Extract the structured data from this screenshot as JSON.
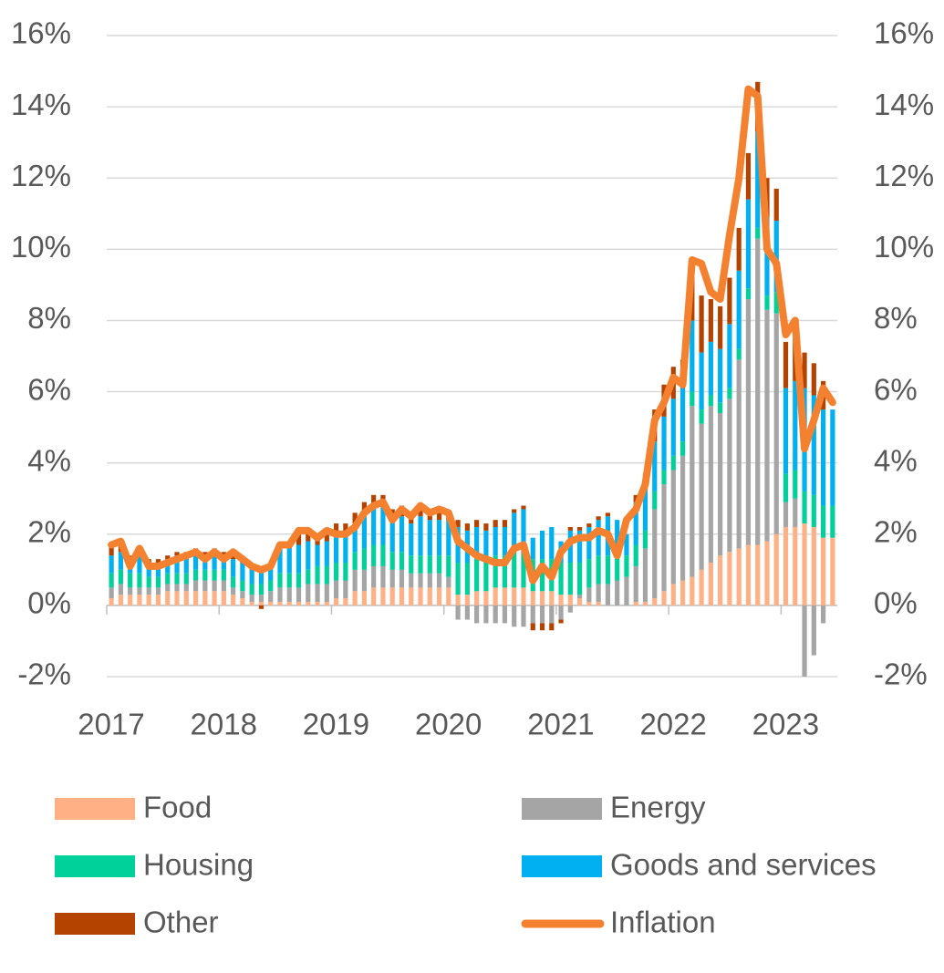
{
  "chart_data": {
    "type": "stacked-bar-line",
    "categories": [
      "2017",
      null,
      null,
      null,
      null,
      null,
      null,
      null,
      null,
      null,
      null,
      null,
      "2018",
      null,
      null,
      null,
      null,
      null,
      null,
      null,
      null,
      null,
      null,
      null,
      "2019",
      null,
      null,
      null,
      null,
      null,
      null,
      null,
      null,
      null,
      null,
      null,
      "2020",
      null,
      null,
      null,
      null,
      null,
      null,
      null,
      null,
      null,
      null,
      null,
      "2021",
      null,
      null,
      null,
      null,
      null,
      null,
      null,
      null,
      null,
      null,
      null,
      "2022",
      null,
      null,
      null,
      null,
      null,
      null,
      null,
      null,
      null,
      null,
      null,
      "2023",
      null,
      null,
      null,
      null,
      null
    ],
    "series": [
      {
        "name": "Food",
        "color": "#ffb085",
        "values": [
          0.2,
          0.3,
          0.3,
          0.3,
          0.3,
          0.3,
          0.4,
          0.4,
          0.4,
          0.4,
          0.4,
          0.4,
          0.4,
          0.3,
          0.2,
          0.1,
          0.1,
          0.1,
          0.1,
          0.1,
          0.1,
          0.1,
          0.1,
          0.1,
          0.2,
          0.2,
          0.4,
          0.4,
          0.5,
          0.5,
          0.5,
          0.5,
          0.5,
          0.5,
          0.5,
          0.5,
          0.5,
          0.3,
          0.3,
          0.4,
          0.4,
          0.5,
          0.5,
          0.5,
          0.5,
          0.4,
          0.4,
          0.4,
          0.3,
          0.3,
          0.2,
          0.1,
          0.1,
          0.0,
          0.0,
          0.0,
          0.1,
          0.1,
          0.2,
          0.4,
          0.6,
          0.7,
          0.8,
          1.0,
          1.2,
          1.4,
          1.5,
          1.6,
          1.7,
          1.7,
          1.8,
          2.0,
          2.2,
          2.2,
          2.3,
          2.2,
          1.9,
          1.9
        ]
      },
      {
        "name": "Energy",
        "color": "#a5a5a5",
        "values": [
          0.3,
          0.3,
          0.2,
          0.2,
          0.2,
          0.2,
          0.2,
          0.2,
          0.2,
          0.3,
          0.3,
          0.3,
          0.3,
          0.2,
          0.2,
          0.2,
          0.2,
          0.3,
          0.4,
          0.4,
          0.4,
          0.5,
          0.5,
          0.5,
          0.5,
          0.5,
          0.6,
          0.6,
          0.6,
          0.6,
          0.5,
          0.5,
          0.4,
          0.4,
          0.4,
          0.4,
          0.3,
          -0.4,
          -0.4,
          -0.5,
          -0.5,
          -0.5,
          -0.5,
          -0.6,
          -0.6,
          -0.5,
          -0.5,
          -0.5,
          -0.4,
          -0.2,
          0.1,
          0.4,
          0.5,
          0.6,
          0.7,
          0.8,
          1.0,
          1.5,
          2.5,
          3.0,
          3.2,
          3.5,
          4.8,
          4.1,
          4.4,
          4.0,
          4.3,
          5.3,
          6.9,
          8.6,
          6.5,
          6.2,
          0.7,
          0.8,
          -2.0,
          -1.4,
          -0.5,
          0.0
        ]
      },
      {
        "name": "Housing",
        "color": "#00d09a",
        "values": [
          0.4,
          0.4,
          0.4,
          0.4,
          0.3,
          0.3,
          0.3,
          0.3,
          0.3,
          0.3,
          0.3,
          0.3,
          0.3,
          0.3,
          0.3,
          0.3,
          0.3,
          0.3,
          0.4,
          0.4,
          0.4,
          0.4,
          0.5,
          0.5,
          0.5,
          0.5,
          0.5,
          0.6,
          0.6,
          0.6,
          0.5,
          0.5,
          0.5,
          0.5,
          0.5,
          0.5,
          0.6,
          0.9,
          0.9,
          0.9,
          0.9,
          0.9,
          0.9,
          1.0,
          1.0,
          0.9,
          0.9,
          0.9,
          0.9,
          0.9,
          0.9,
          0.8,
          0.8,
          0.8,
          0.7,
          0.6,
          0.6,
          0.5,
          0.5,
          0.4,
          0.4,
          0.4,
          0.4,
          0.4,
          0.3,
          0.3,
          0.3,
          0.3,
          0.3,
          0.3,
          0.4,
          0.6,
          0.8,
          0.8,
          0.9,
          0.9,
          0.9,
          0.9
        ]
      },
      {
        "name": "Goods and services",
        "color": "#00b0f0",
        "values": [
          0.5,
          0.5,
          0.4,
          0.5,
          0.4,
          0.4,
          0.4,
          0.5,
          0.5,
          0.5,
          0.4,
          0.5,
          0.4,
          0.5,
          0.5,
          0.4,
          0.4,
          0.4,
          0.7,
          0.7,
          0.8,
          0.8,
          0.6,
          0.7,
          0.8,
          0.8,
          0.8,
          1.0,
          1.1,
          1.1,
          0.9,
          1.0,
          0.9,
          1.1,
          1.0,
          1.0,
          1.0,
          1.0,
          0.9,
          0.9,
          0.8,
          0.8,
          0.8,
          1.1,
          1.2,
          0.6,
          0.8,
          0.9,
          0.6,
          0.9,
          0.9,
          0.9,
          1.0,
          1.1,
          1.0,
          0.6,
          1.2,
          1.3,
          1.4,
          1.5,
          1.6,
          1.5,
          2.0,
          1.6,
          1.5,
          1.5,
          1.8,
          2.2,
          2.5,
          2.7,
          2.2,
          2.0,
          2.4,
          2.5,
          2.9,
          2.8,
          2.7,
          2.7
        ]
      },
      {
        "name": "Other",
        "color": "#b54300",
        "values": [
          0.3,
          0.3,
          0.1,
          0.2,
          0.1,
          0.1,
          0.1,
          0.1,
          0.1,
          0.1,
          0.1,
          0.1,
          0.1,
          0.2,
          0.1,
          0.1,
          -0.1,
          0.0,
          0.1,
          0.2,
          0.4,
          0.3,
          0.3,
          0.3,
          0.3,
          0.3,
          0.3,
          0.3,
          0.3,
          0.3,
          0.3,
          0.3,
          0.2,
          0.2,
          0.2,
          0.2,
          0.2,
          0.2,
          0.2,
          0.2,
          0.2,
          0.2,
          0.2,
          0.1,
          0.1,
          -0.2,
          -0.2,
          -0.2,
          -0.1,
          0.1,
          0.1,
          0.1,
          0.1,
          0.1,
          0.0,
          0.0,
          0.2,
          0.3,
          0.9,
          0.9,
          0.9,
          0.8,
          1.6,
          1.6,
          1.2,
          1.2,
          1.3,
          1.2,
          1.3,
          1.4,
          1.1,
          0.9,
          1.3,
          1.2,
          1.0,
          0.9,
          0.8,
          0.0
        ]
      },
      {
        "name": "Inflation",
        "color": "#f4812f",
        "kind": "line",
        "values": [
          1.7,
          1.8,
          1.1,
          1.6,
          1.1,
          1.1,
          1.2,
          1.3,
          1.4,
          1.5,
          1.3,
          1.5,
          1.3,
          1.5,
          1.3,
          1.1,
          1.0,
          1.1,
          1.7,
          1.7,
          2.1,
          2.1,
          1.9,
          2.1,
          2.0,
          2.0,
          2.2,
          2.6,
          2.8,
          2.9,
          2.4,
          2.7,
          2.5,
          2.8,
          2.6,
          2.7,
          2.6,
          1.8,
          1.6,
          1.4,
          1.3,
          1.2,
          1.2,
          1.6,
          1.7,
          0.7,
          1.1,
          0.8,
          1.5,
          1.8,
          1.9,
          1.9,
          2.1,
          2.0,
          1.4,
          2.4,
          2.7,
          3.4,
          5.2,
          5.7,
          6.4,
          6.2,
          9.7,
          9.6,
          8.8,
          8.6,
          10.4,
          12.0,
          14.5,
          14.3,
          10.0,
          9.6,
          7.6,
          8.0,
          4.4,
          5.2,
          6.1,
          5.7
        ]
      }
    ],
    "ylim": [
      -2,
      16
    ],
    "yticks": [
      {
        "value": -2,
        "label": "-2%"
      },
      {
        "value": 0,
        "label": "0%"
      },
      {
        "value": 2,
        "label": "2%"
      },
      {
        "value": 4,
        "label": "4%"
      },
      {
        "value": 6,
        "label": "6%"
      },
      {
        "value": 8,
        "label": "8%"
      },
      {
        "value": 10,
        "label": "10%"
      },
      {
        "value": 12,
        "label": "12%"
      },
      {
        "value": 14,
        "label": "14%"
      },
      {
        "value": 16,
        "label": "16%"
      }
    ],
    "y2lim": [
      -2,
      16
    ],
    "y2ticks": [
      {
        "value": -2,
        "label": "-2%"
      },
      {
        "value": 0,
        "label": "0%"
      },
      {
        "value": 2,
        "label": "2%"
      },
      {
        "value": 4,
        "label": "4%"
      },
      {
        "value": 6,
        "label": "6%"
      },
      {
        "value": 8,
        "label": "8%"
      },
      {
        "value": 10,
        "label": "10%"
      },
      {
        "value": 12,
        "label": "12%"
      },
      {
        "value": 14,
        "label": "14%"
      },
      {
        "value": 16,
        "label": "16%"
      }
    ],
    "grid": true,
    "legend": "bottom"
  }
}
